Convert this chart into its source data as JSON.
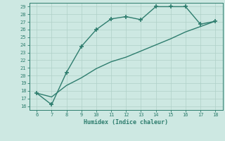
{
  "line1_x": [
    6,
    7,
    8,
    9,
    10,
    11,
    12,
    13,
    14,
    15,
    16,
    17,
    18
  ],
  "line1_y": [
    17.7,
    16.2,
    20.4,
    23.8,
    26.0,
    27.4,
    27.7,
    27.3,
    29.0,
    29.0,
    29.0,
    26.7,
    27.1
  ],
  "line2_x": [
    6,
    7,
    8,
    9,
    10,
    11,
    12,
    13,
    14,
    15,
    16,
    17,
    18
  ],
  "line2_y": [
    17.7,
    17.2,
    18.7,
    19.7,
    20.9,
    21.8,
    22.4,
    23.2,
    24.0,
    24.8,
    25.7,
    26.4,
    27.1
  ],
  "color": "#2e7d6e",
  "xlabel": "Humidex (Indice chaleur)",
  "xlim": [
    5.5,
    18.5
  ],
  "ylim": [
    15.5,
    29.5
  ],
  "yticks": [
    16,
    17,
    18,
    19,
    20,
    21,
    22,
    23,
    24,
    25,
    26,
    27,
    28,
    29
  ],
  "xticks": [
    6,
    7,
    8,
    9,
    10,
    11,
    12,
    13,
    14,
    15,
    16,
    17,
    18
  ],
  "bg_color": "#cde8e2",
  "grid_color": "#afd0c8",
  "xlabel_fontsize": 6.0,
  "marker": "+",
  "markersize": 4,
  "linewidth": 1.0
}
